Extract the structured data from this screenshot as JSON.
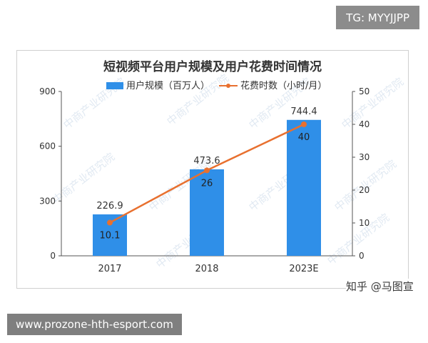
{
  "tag_label": "TG: MYYJJPP",
  "site_label": "www.prozone-hth-esport.com",
  "source_label": "知乎 @马图宣",
  "watermark_text": "中商产业研究院",
  "chart_data": {
    "type": "bar+line",
    "title": "短视频平台用户规模及用户花费时间情况",
    "categories": [
      "2017",
      "2018",
      "2023E"
    ],
    "series": [
      {
        "name": "用户规模（百万人）",
        "type": "bar",
        "axis": "left",
        "color": "#2f8fe8",
        "values": [
          226.9,
          473.6,
          744.4
        ],
        "labels": [
          "226.9",
          "473.6",
          "744.4"
        ]
      },
      {
        "name": "花费时数（小时/月）",
        "type": "line",
        "axis": "right",
        "color": "#e8702f",
        "values": [
          10.1,
          26,
          40
        ],
        "labels": [
          "10.1",
          "26",
          "40"
        ]
      }
    ],
    "y_left": {
      "min": 0,
      "max": 900,
      "ticks": [
        "0",
        "300",
        "600",
        "900"
      ]
    },
    "y_right": {
      "min": 0,
      "max": 50,
      "ticks": [
        "0",
        "10",
        "20",
        "30",
        "40",
        "50"
      ]
    },
    "legend_position": "top-center",
    "grid": false
  }
}
